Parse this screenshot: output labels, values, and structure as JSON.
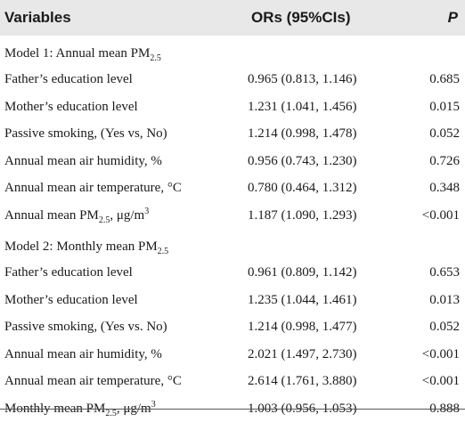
{
  "header": {
    "variables": "Variables",
    "ors": "ORs (95%CIs)",
    "p": "P"
  },
  "rows": [
    {
      "type": "model",
      "pre": "Model 1: Annual mean PM",
      "sub": "2.5"
    },
    {
      "type": "data",
      "var": "Father’s education level",
      "or": "0.965 (0.813, 1.146)",
      "p": "0.685"
    },
    {
      "type": "data",
      "var": "Mother’s education level",
      "or": "1.231 (1.041, 1.456)",
      "p": "0.015"
    },
    {
      "type": "data",
      "var": "Passive smoking, (Yes vs, No)",
      "or": "1.214 (0.998, 1.478)",
      "p": "0.052"
    },
    {
      "type": "data",
      "var": "Annual mean air humidity, %",
      "or": "0.956 (0.743, 1.230)",
      "p": "0.726"
    },
    {
      "type": "data",
      "var": "Annual mean air temperature, °C",
      "or": "0.780 (0.464, 1.312)",
      "p": "0.348"
    },
    {
      "type": "pm",
      "pre": "Annual mean PM",
      "sub": "2.5",
      "unit": ", μg/m",
      "sup": "3",
      "or": "1.187 (1.090, 1.293)",
      "p": "<0.001"
    },
    {
      "type": "model",
      "pre": "Model 2: Monthly mean PM",
      "sub": "2.5"
    },
    {
      "type": "data",
      "var": "Father’s education level",
      "or": "0.961 (0.809, 1.142)",
      "p": "0.653"
    },
    {
      "type": "data",
      "var": "Mother’s education level",
      "or": "1.235 (1.044, 1.461)",
      "p": "0.013"
    },
    {
      "type": "data",
      "var": "Passive smoking, (Yes vs. No)",
      "or": "1.214 (0.998, 1.477)",
      "p": "0.052"
    },
    {
      "type": "data",
      "var": "Annual mean air humidity, %",
      "or": "2.021 (1.497, 2.730)",
      "p": "<0.001"
    },
    {
      "type": "data",
      "var": "Annual mean air temperature, °C",
      "or": "2.614 (1.761, 3.880)",
      "p": "<0.001"
    },
    {
      "type": "pm",
      "pre": "Monthly mean PM",
      "sub": "2.5",
      "unit": ", μg/m",
      "sup": "3",
      "or": "1.003 (0.956, 1.053)",
      "p": "0.888"
    }
  ]
}
